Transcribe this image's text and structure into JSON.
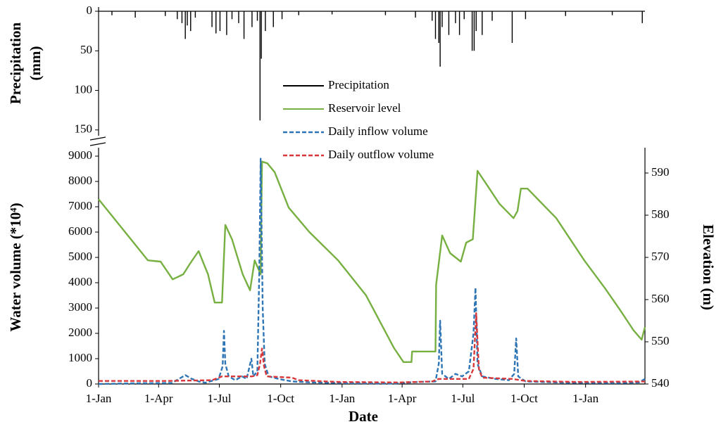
{
  "chart_data": [
    {
      "type": "bar",
      "ylabel": [
        "Precipitation",
        "(mm)"
      ],
      "xlim": [
        0,
        819
      ],
      "ylim": [
        0,
        160
      ],
      "yticks": [
        0,
        50,
        100,
        150
      ],
      "yinverted": true,
      "series": [
        {
          "name": "Precipitation",
          "color": "#000000",
          "x": [
            20,
            55,
            100,
            118,
            125,
            130,
            133,
            138,
            145,
            170,
            176,
            182,
            192,
            200,
            210,
            218,
            230,
            238,
            242,
            244,
            250,
            262,
            275,
            300,
            350,
            430,
            475,
            500,
            505,
            510,
            512,
            515,
            525,
            535,
            541,
            548,
            560,
            563,
            566,
            575,
            590,
            620,
            640,
            700,
            770,
            815
          ],
          "values": [
            5,
            8,
            6,
            10,
            15,
            35,
            18,
            25,
            8,
            20,
            28,
            25,
            30,
            10,
            15,
            35,
            20,
            12,
            138,
            60,
            25,
            20,
            10,
            5,
            4,
            5,
            8,
            12,
            35,
            40,
            70,
            20,
            30,
            15,
            30,
            10,
            50,
            50,
            25,
            30,
            12,
            40,
            10,
            6,
            5,
            15
          ]
        }
      ]
    },
    {
      "type": "line",
      "xlabel": "Date",
      "ylabel": "Water volume (*10⁴)",
      "y2label": "Elevation (m)",
      "xlim": [
        0,
        819
      ],
      "xticks": [
        {
          "value": 0,
          "label": "1-Jan"
        },
        {
          "value": 90,
          "label": "1-Apr"
        },
        {
          "value": 181,
          "label": "1-Jul"
        },
        {
          "value": 273,
          "label": "1-Oct"
        },
        {
          "value": 365,
          "label": "1-Jan"
        },
        {
          "value": 455,
          "label": "1-Apr"
        },
        {
          "value": 546,
          "label": "1-Jul"
        },
        {
          "value": 638,
          "label": "1-Oct"
        },
        {
          "value": 730,
          "label": "1-Jan"
        }
      ],
      "ylim": [
        0,
        9333
      ],
      "yticks": [
        0,
        1000,
        2000,
        3000,
        4000,
        5000,
        6000,
        7000,
        8000,
        9000
      ],
      "y2lim": [
        540,
        596
      ],
      "y2ticks": [
        540,
        550,
        560,
        570,
        580,
        590
      ],
      "series": [
        {
          "name": "Reservoir level",
          "color": "#77b041",
          "axis": "y2",
          "dash": false,
          "x": [
            0,
            74,
            93,
            111,
            127,
            137,
            150,
            164,
            174,
            185,
            190,
            200,
            216,
            227,
            234,
            243,
            245,
            253,
            264,
            285,
            316,
            359,
            401,
            443,
            457,
            469,
            470,
            496,
            505,
            506,
            515,
            527,
            543,
            551,
            561,
            568,
            580,
            601,
            622,
            628,
            633,
            643,
            686,
            728,
            759,
            781,
            802,
            814,
            819
          ],
          "values": [
            583.8,
            569.3,
            569,
            564.8,
            566,
            568.5,
            571.5,
            566,
            559.3,
            559.3,
            577.7,
            574.3,
            566,
            562.2,
            569.3,
            566,
            592.7,
            592.3,
            590.2,
            581.8,
            576,
            569.3,
            561,
            548.5,
            545.2,
            545.2,
            547.7,
            547.7,
            547.7,
            563.5,
            575.2,
            571,
            569,
            573.5,
            574.3,
            590.5,
            587.7,
            582.7,
            579.3,
            581,
            586.3,
            586.3,
            579.3,
            569.3,
            562.7,
            557.7,
            552.7,
            550.5,
            553.5
          ]
        },
        {
          "name": "Daily inflow volume",
          "color": "#2e75b6",
          "dash": true,
          "x": [
            0,
            60,
            110,
            130,
            140,
            150,
            160,
            180,
            186,
            188,
            190,
            195,
            205,
            215,
            222,
            229,
            232,
            238,
            241,
            243,
            246,
            249,
            255,
            270,
            290,
            320,
            380,
            440,
            480,
            505,
            510,
            512,
            515,
            525,
            535,
            545,
            555,
            562,
            565,
            568,
            575,
            595,
            615,
            623,
            626,
            629,
            640,
            700,
            780,
            810,
            819
          ],
          "values": [
            0,
            30,
            40,
            350,
            200,
            100,
            50,
            200,
            700,
            2100,
            800,
            300,
            150,
            300,
            200,
            1000,
            300,
            500,
            4500,
            8900,
            3000,
            800,
            300,
            200,
            100,
            60,
            30,
            20,
            80,
            100,
            800,
            2500,
            400,
            200,
            400,
            300,
            500,
            2000,
            3800,
            800,
            300,
            200,
            150,
            400,
            1800,
            300,
            100,
            50,
            40,
            60,
            200
          ]
        },
        {
          "name": "Daily outflow volume",
          "color": "#d9383a",
          "dash": true,
          "x": [
            0,
            100,
            170,
            185,
            230,
            238,
            242,
            245,
            248,
            252,
            290,
            300,
            360,
            450,
            500,
            510,
            555,
            562,
            566,
            570,
            575,
            620,
            640,
            720,
            819
          ],
          "values": [
            120,
            120,
            150,
            300,
            300,
            350,
            800,
            1400,
            700,
            300,
            250,
            150,
            80,
            60,
            100,
            200,
            200,
            600,
            2800,
            600,
            250,
            200,
            120,
            80,
            100
          ]
        }
      ]
    }
  ]
}
